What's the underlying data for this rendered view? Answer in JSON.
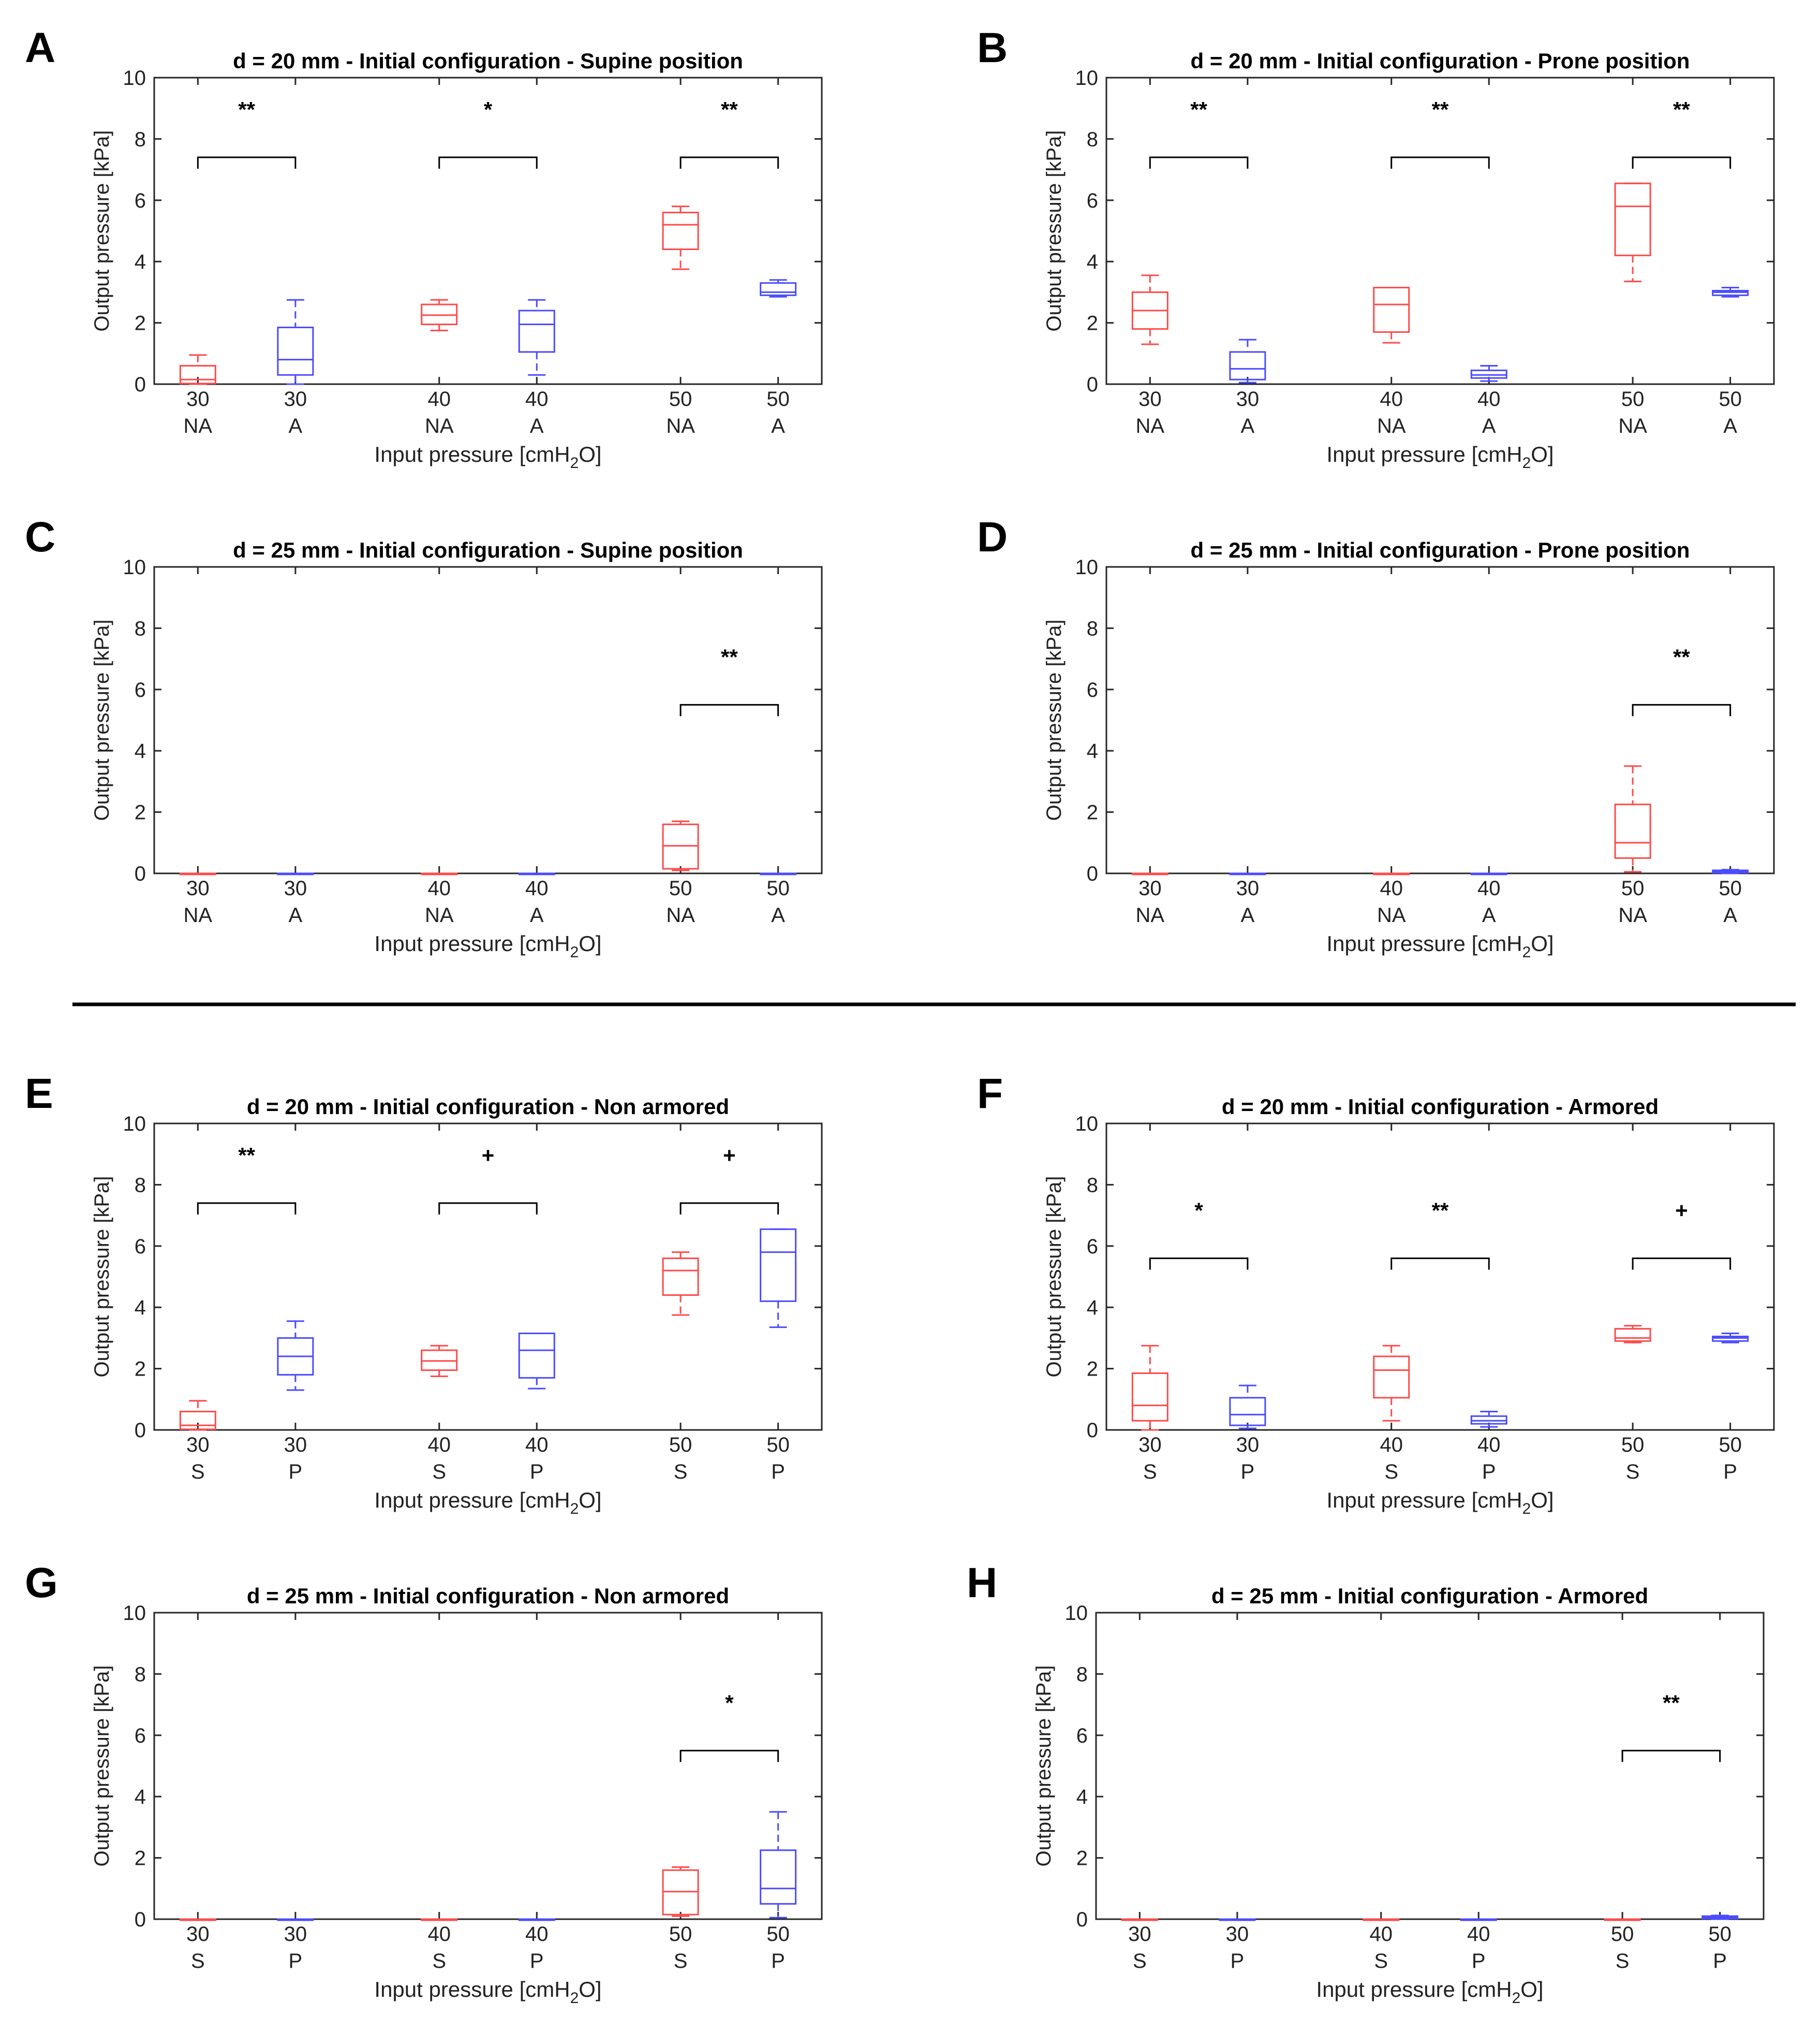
{
  "figure": {
    "divider": "horizontal-rule-between-D-and-E",
    "colors": {
      "red": "#ff4a4a",
      "blue": "#4b4bff",
      "axis": "#262626",
      "bracket": "#000000"
    }
  },
  "chart_data": [
    {
      "panel_label": "A",
      "type": "box",
      "title": "d = 20 mm - Initial configuration - Supine position",
      "xlabel": "Input pressure [cmH2O]",
      "ylabel": "Output pressure [kPa]",
      "ylim": [
        0,
        10
      ],
      "yticks": [
        0,
        2,
        4,
        6,
        8,
        10
      ],
      "categories": [
        {
          "top": "30",
          "bottom": "NA",
          "color": "red"
        },
        {
          "top": "30",
          "bottom": "A",
          "color": "blue"
        },
        {
          "top": "40",
          "bottom": "NA",
          "color": "red"
        },
        {
          "top": "40",
          "bottom": "A",
          "color": "blue"
        },
        {
          "top": "50",
          "bottom": "NA",
          "color": "red"
        },
        {
          "top": "50",
          "bottom": "A",
          "color": "blue"
        }
      ],
      "boxes": [
        {
          "min": 0,
          "q1": 0.02,
          "median": 0.15,
          "q3": 0.6,
          "max": 0.95
        },
        {
          "min": 0,
          "q1": 0.3,
          "median": 0.8,
          "q3": 1.85,
          "max": 2.75
        },
        {
          "min": 1.75,
          "q1": 1.95,
          "median": 2.25,
          "q3": 2.6,
          "max": 2.75
        },
        {
          "min": 0.3,
          "q1": 1.05,
          "median": 1.95,
          "q3": 2.4,
          "max": 2.75
        },
        {
          "min": 3.75,
          "q1": 4.4,
          "median": 5.2,
          "q3": 5.6,
          "max": 5.8
        },
        {
          "min": 2.85,
          "q1": 2.9,
          "median": 3.0,
          "q3": 3.3,
          "max": 3.4
        }
      ],
      "significance": [
        {
          "pair": [
            0,
            1
          ],
          "y": 7.4,
          "label": "**"
        },
        {
          "pair": [
            2,
            3
          ],
          "y": 7.4,
          "label": "*"
        },
        {
          "pair": [
            4,
            5
          ],
          "y": 7.4,
          "label": "**"
        }
      ]
    },
    {
      "panel_label": "B",
      "type": "box",
      "title": "d = 20 mm - Initial configuration - Prone position",
      "xlabel": "Input pressure [cmH2O]",
      "ylabel": "Output pressure [kPa]",
      "ylim": [
        0,
        10
      ],
      "yticks": [
        0,
        2,
        4,
        6,
        8,
        10
      ],
      "categories": [
        {
          "top": "30",
          "bottom": "NA",
          "color": "red"
        },
        {
          "top": "30",
          "bottom": "A",
          "color": "blue"
        },
        {
          "top": "40",
          "bottom": "NA",
          "color": "red"
        },
        {
          "top": "40",
          "bottom": "A",
          "color": "blue"
        },
        {
          "top": "50",
          "bottom": "NA",
          "color": "red"
        },
        {
          "top": "50",
          "bottom": "A",
          "color": "blue"
        }
      ],
      "boxes": [
        {
          "min": 1.3,
          "q1": 1.8,
          "median": 2.4,
          "q3": 3.0,
          "max": 3.55
        },
        {
          "min": 0.05,
          "q1": 0.15,
          "median": 0.5,
          "q3": 1.05,
          "max": 1.45
        },
        {
          "min": 1.35,
          "q1": 1.7,
          "median": 2.6,
          "q3": 3.15,
          "max": 3.15
        },
        {
          "min": 0.1,
          "q1": 0.2,
          "median": 0.3,
          "q3": 0.45,
          "max": 0.6
        },
        {
          "min": 3.35,
          "q1": 4.2,
          "median": 5.8,
          "q3": 6.55,
          "max": 6.55
        },
        {
          "min": 2.85,
          "q1": 2.9,
          "median": 3.0,
          "q3": 3.05,
          "max": 3.15
        }
      ],
      "significance": [
        {
          "pair": [
            0,
            1
          ],
          "y": 7.4,
          "label": "**"
        },
        {
          "pair": [
            2,
            3
          ],
          "y": 7.4,
          "label": "**"
        },
        {
          "pair": [
            4,
            5
          ],
          "y": 7.4,
          "label": "**"
        }
      ]
    },
    {
      "panel_label": "C",
      "type": "box",
      "title": "d = 25 mm - Initial configuration - Supine position",
      "xlabel": "Input pressure [cmH2O]",
      "ylabel": "Output pressure [kPa]",
      "ylim": [
        0,
        10
      ],
      "yticks": [
        0,
        2,
        4,
        6,
        8,
        10
      ],
      "categories": [
        {
          "top": "30",
          "bottom": "NA",
          "color": "red"
        },
        {
          "top": "30",
          "bottom": "A",
          "color": "blue"
        },
        {
          "top": "40",
          "bottom": "NA",
          "color": "red"
        },
        {
          "top": "40",
          "bottom": "A",
          "color": "blue"
        },
        {
          "top": "50",
          "bottom": "NA",
          "color": "red"
        },
        {
          "top": "50",
          "bottom": "A",
          "color": "blue"
        }
      ],
      "boxes": [
        {
          "min": 0,
          "q1": 0,
          "median": 0,
          "q3": 0,
          "max": 0
        },
        {
          "min": 0,
          "q1": 0,
          "median": 0,
          "q3": 0,
          "max": 0
        },
        {
          "min": 0,
          "q1": 0,
          "median": 0,
          "q3": 0,
          "max": 0
        },
        {
          "min": 0,
          "q1": 0,
          "median": 0,
          "q3": 0,
          "max": 0
        },
        {
          "min": 0.1,
          "q1": 0.15,
          "median": 0.9,
          "q3": 1.6,
          "max": 1.7
        },
        {
          "min": 0,
          "q1": 0,
          "median": 0,
          "q3": 0,
          "max": 0
        }
      ],
      "significance": [
        {
          "pair": [
            4,
            5
          ],
          "y": 5.5,
          "label": "**"
        }
      ]
    },
    {
      "panel_label": "D",
      "type": "box",
      "title": "d = 25 mm - Initial configuration - Prone position",
      "xlabel": "Input pressure [cmH2O]",
      "ylabel": "Output pressure [kPa]",
      "ylim": [
        0,
        10
      ],
      "yticks": [
        0,
        2,
        4,
        6,
        8,
        10
      ],
      "categories": [
        {
          "top": "30",
          "bottom": "NA",
          "color": "red"
        },
        {
          "top": "30",
          "bottom": "A",
          "color": "blue"
        },
        {
          "top": "40",
          "bottom": "NA",
          "color": "red"
        },
        {
          "top": "40",
          "bottom": "A",
          "color": "blue"
        },
        {
          "top": "50",
          "bottom": "NA",
          "color": "red"
        },
        {
          "top": "50",
          "bottom": "A",
          "color": "blue"
        }
      ],
      "boxes": [
        {
          "min": 0,
          "q1": 0,
          "median": 0,
          "q3": 0,
          "max": 0
        },
        {
          "min": 0,
          "q1": 0,
          "median": 0,
          "q3": 0,
          "max": 0
        },
        {
          "min": 0,
          "q1": 0,
          "median": 0,
          "q3": 0,
          "max": 0
        },
        {
          "min": 0,
          "q1": 0,
          "median": 0,
          "q3": 0,
          "max": 0
        },
        {
          "min": 0.05,
          "q1": 0.5,
          "median": 1.0,
          "q3": 2.25,
          "max": 3.5
        },
        {
          "min": 0,
          "q1": 0.02,
          "median": 0.05,
          "q3": 0.1,
          "max": 0.12
        }
      ],
      "significance": [
        {
          "pair": [
            4,
            5
          ],
          "y": 5.5,
          "label": "**"
        }
      ]
    },
    {
      "panel_label": "E",
      "type": "box",
      "title": "d = 20 mm - Initial configuration - Non armored",
      "xlabel": "Input pressure [cmH2O]",
      "ylabel": "Output pressure [kPa]",
      "ylim": [
        0,
        10
      ],
      "yticks": [
        0,
        2,
        4,
        6,
        8,
        10
      ],
      "categories": [
        {
          "top": "30",
          "bottom": "S",
          "color": "red"
        },
        {
          "top": "30",
          "bottom": "P",
          "color": "blue"
        },
        {
          "top": "40",
          "bottom": "S",
          "color": "red"
        },
        {
          "top": "40",
          "bottom": "P",
          "color": "blue"
        },
        {
          "top": "50",
          "bottom": "S",
          "color": "red"
        },
        {
          "top": "50",
          "bottom": "P",
          "color": "blue"
        }
      ],
      "boxes": [
        {
          "min": 0,
          "q1": 0.02,
          "median": 0.15,
          "q3": 0.6,
          "max": 0.95
        },
        {
          "min": 1.3,
          "q1": 1.8,
          "median": 2.4,
          "q3": 3.0,
          "max": 3.55
        },
        {
          "min": 1.75,
          "q1": 1.95,
          "median": 2.25,
          "q3": 2.6,
          "max": 2.75
        },
        {
          "min": 1.35,
          "q1": 1.7,
          "median": 2.6,
          "q3": 3.15,
          "max": 3.15
        },
        {
          "min": 3.75,
          "q1": 4.4,
          "median": 5.2,
          "q3": 5.6,
          "max": 5.8
        },
        {
          "min": 3.35,
          "q1": 4.2,
          "median": 5.8,
          "q3": 6.55,
          "max": 6.55
        }
      ],
      "significance": [
        {
          "pair": [
            0,
            1
          ],
          "y": 7.4,
          "label": "**"
        },
        {
          "pair": [
            2,
            3
          ],
          "y": 7.4,
          "label": "+"
        },
        {
          "pair": [
            4,
            5
          ],
          "y": 7.4,
          "label": "+"
        }
      ]
    },
    {
      "panel_label": "F",
      "type": "box",
      "title": "d = 20 mm - Initial configuration - Armored",
      "xlabel": "Input pressure [cmH2O]",
      "ylabel": "Output pressure [kPa]",
      "ylim": [
        0,
        10
      ],
      "yticks": [
        0,
        2,
        4,
        6,
        8,
        10
      ],
      "categories": [
        {
          "top": "30",
          "bottom": "S",
          "color": "red"
        },
        {
          "top": "30",
          "bottom": "P",
          "color": "blue"
        },
        {
          "top": "40",
          "bottom": "S",
          "color": "red"
        },
        {
          "top": "40",
          "bottom": "P",
          "color": "blue"
        },
        {
          "top": "50",
          "bottom": "S",
          "color": "red"
        },
        {
          "top": "50",
          "bottom": "P",
          "color": "blue"
        }
      ],
      "boxes": [
        {
          "min": 0,
          "q1": 0.3,
          "median": 0.8,
          "q3": 1.85,
          "max": 2.75
        },
        {
          "min": 0.05,
          "q1": 0.15,
          "median": 0.5,
          "q3": 1.05,
          "max": 1.45
        },
        {
          "min": 0.3,
          "q1": 1.05,
          "median": 1.95,
          "q3": 2.4,
          "max": 2.75
        },
        {
          "min": 0.1,
          "q1": 0.2,
          "median": 0.3,
          "q3": 0.45,
          "max": 0.6
        },
        {
          "min": 2.85,
          "q1": 2.9,
          "median": 3.0,
          "q3": 3.3,
          "max": 3.4
        },
        {
          "min": 2.85,
          "q1": 2.9,
          "median": 3.0,
          "q3": 3.05,
          "max": 3.15
        }
      ],
      "significance": [
        {
          "pair": [
            0,
            1
          ],
          "y": 5.6,
          "label": "*"
        },
        {
          "pair": [
            2,
            3
          ],
          "y": 5.6,
          "label": "**"
        },
        {
          "pair": [
            4,
            5
          ],
          "y": 5.6,
          "label": "+"
        }
      ]
    },
    {
      "panel_label": "G",
      "type": "box",
      "title": "d = 25 mm - Initial configuration - Non armored",
      "xlabel": "Input pressure [cmH2O]",
      "ylabel": "Output pressure [kPa]",
      "ylim": [
        0,
        10
      ],
      "yticks": [
        0,
        2,
        4,
        6,
        8,
        10
      ],
      "categories": [
        {
          "top": "30",
          "bottom": "S",
          "color": "red"
        },
        {
          "top": "30",
          "bottom": "P",
          "color": "blue"
        },
        {
          "top": "40",
          "bottom": "S",
          "color": "red"
        },
        {
          "top": "40",
          "bottom": "P",
          "color": "blue"
        },
        {
          "top": "50",
          "bottom": "S",
          "color": "red"
        },
        {
          "top": "50",
          "bottom": "P",
          "color": "blue"
        }
      ],
      "boxes": [
        {
          "min": 0,
          "q1": 0,
          "median": 0,
          "q3": 0,
          "max": 0
        },
        {
          "min": 0,
          "q1": 0,
          "median": 0,
          "q3": 0,
          "max": 0
        },
        {
          "min": 0,
          "q1": 0,
          "median": 0,
          "q3": 0,
          "max": 0
        },
        {
          "min": 0,
          "q1": 0,
          "median": 0,
          "q3": 0,
          "max": 0
        },
        {
          "min": 0.1,
          "q1": 0.15,
          "median": 0.9,
          "q3": 1.6,
          "max": 1.7
        },
        {
          "min": 0.05,
          "q1": 0.5,
          "median": 1.0,
          "q3": 2.25,
          "max": 3.5
        }
      ],
      "significance": [
        {
          "pair": [
            4,
            5
          ],
          "y": 5.5,
          "label": "*"
        }
      ]
    },
    {
      "panel_label": "H",
      "type": "box",
      "title": "d = 25 mm - Initial configuration - Armored",
      "xlabel": "Input pressure [cmH2O]",
      "ylabel": "Output pressure [kPa]",
      "ylim": [
        0,
        10
      ],
      "yticks": [
        0,
        2,
        4,
        6,
        8,
        10
      ],
      "categories": [
        {
          "top": "30",
          "bottom": "S",
          "color": "red"
        },
        {
          "top": "30",
          "bottom": "P",
          "color": "blue"
        },
        {
          "top": "40",
          "bottom": "S",
          "color": "red"
        },
        {
          "top": "40",
          "bottom": "P",
          "color": "blue"
        },
        {
          "top": "50",
          "bottom": "S",
          "color": "red"
        },
        {
          "top": "50",
          "bottom": "P",
          "color": "blue"
        }
      ],
      "boxes": [
        {
          "min": 0,
          "q1": 0,
          "median": 0,
          "q3": 0,
          "max": 0
        },
        {
          "min": 0,
          "q1": 0,
          "median": 0,
          "q3": 0,
          "max": 0
        },
        {
          "min": 0,
          "q1": 0,
          "median": 0,
          "q3": 0,
          "max": 0
        },
        {
          "min": 0,
          "q1": 0,
          "median": 0,
          "q3": 0,
          "max": 0
        },
        {
          "min": 0,
          "q1": 0,
          "median": 0,
          "q3": 0,
          "max": 0
        },
        {
          "min": 0,
          "q1": 0.02,
          "median": 0.05,
          "q3": 0.1,
          "max": 0.12
        }
      ],
      "significance": [
        {
          "pair": [
            4,
            5
          ],
          "y": 5.5,
          "label": "**"
        }
      ]
    }
  ]
}
